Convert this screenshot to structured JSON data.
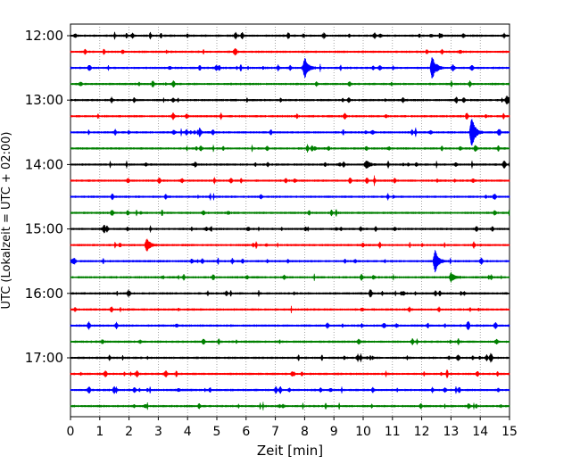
{
  "chart_data": {
    "type": "line",
    "title": "",
    "xlabel": "Zeit  [min]",
    "ylabel": "UTC (Lokalzeit = UTC + 02:00)",
    "xlim": [
      0,
      15
    ],
    "x_ticks": [
      "0",
      "1",
      "2",
      "3",
      "4",
      "5",
      "6",
      "7",
      "8",
      "9",
      "10",
      "11",
      "12",
      "13",
      "14",
      "15"
    ],
    "y_ticks": [
      "12:00",
      "13:00",
      "14:00",
      "15:00",
      "16:00",
      "17:00"
    ],
    "trace_interval_min": 15,
    "first_trace": "12:00",
    "trace_count": 24,
    "trace_colors": [
      "#000000",
      "#ff0000",
      "#0000ff",
      "#008000"
    ],
    "grid": "vertical dotted",
    "events": [
      {
        "trace": "12:30",
        "minute": 8.0,
        "strength": 1.0
      },
      {
        "trace": "12:30",
        "minute": 12.35,
        "strength": 1.1
      },
      {
        "trace": "13:30",
        "minute": 13.7,
        "strength": 1.6
      },
      {
        "trace": "15:15",
        "minute": 2.6,
        "strength": 0.6
      },
      {
        "trace": "15:30",
        "minute": 12.45,
        "strength": 1.1
      },
      {
        "trace": "14:00",
        "minute": 10.1,
        "strength": 0.4
      },
      {
        "trace": "15:45",
        "minute": 13.0,
        "strength": 0.4
      },
      {
        "trace": "13:00",
        "minute": 14.9,
        "strength": 0.4
      }
    ]
  }
}
